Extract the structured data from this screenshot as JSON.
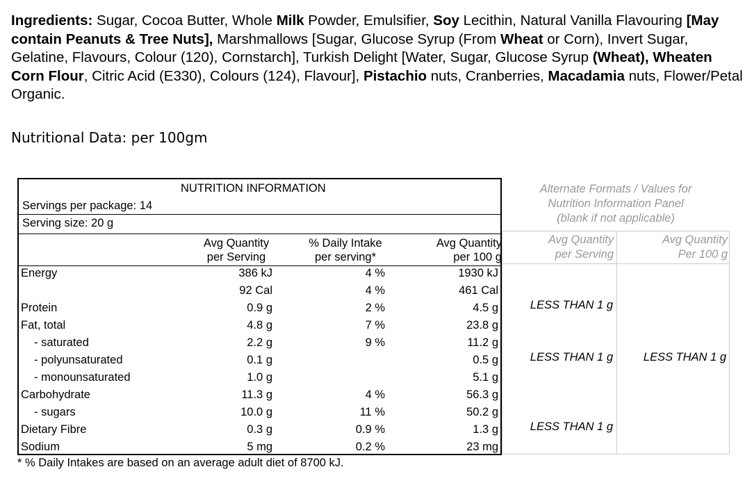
{
  "ingredients": {
    "label": "Ingredients:",
    "segments": [
      {
        "t": " Sugar, Cocoa Butter, Whole ",
        "b": false
      },
      {
        "t": "Milk",
        "b": true
      },
      {
        "t": " Powder, Emulsifier, ",
        "b": false
      },
      {
        "t": "Soy",
        "b": true
      },
      {
        "t": " Lecithin, Natural Vanilla Flavouring ",
        "b": false
      },
      {
        "t": "[May contain Peanuts & Tree Nuts],",
        "b": true
      },
      {
        "t": " Marshmallows [Sugar, Glucose Syrup (From ",
        "b": false
      },
      {
        "t": "Wheat",
        "b": true
      },
      {
        "t": " or Corn), Invert Sugar, Gelatine, Flavours, Colour (120), Cornstarch], Turkish Delight [Water, Sugar, Glucose Syrup ",
        "b": false
      },
      {
        "t": "(Wheat), Wheaten Corn Flour",
        "b": true
      },
      {
        "t": ", Citric Acid (E330), Colours (124), Flavour], ",
        "b": false
      },
      {
        "t": "Pistachio",
        "b": true
      },
      {
        "t": " nuts, Cranberries, ",
        "b": false
      },
      {
        "t": "Macadamia",
        "b": true
      },
      {
        "t": " nuts, Flower/Petal Organic.",
        "b": false
      }
    ]
  },
  "nutritional_heading": "Nutritional Data: per 100gm",
  "panel": {
    "title": "NUTRITION INFORMATION",
    "servings_per_package": "Servings per package: 14",
    "serving_size": "Serving size: 20 g",
    "headers": {
      "per_serving": [
        "Avg Quantity",
        "per Serving"
      ],
      "daily_intake": [
        "% Daily Intake",
        "per serving*"
      ],
      "per_100g": [
        "Avg Quantity",
        "per 100 g"
      ]
    },
    "rows": [
      {
        "label": "Energy",
        "indent": false,
        "serving": "386 kJ",
        "daily": "4 %",
        "per100": "1930 kJ"
      },
      {
        "label": "",
        "indent": false,
        "serving": "92 Cal",
        "daily": "4 %",
        "per100": "461 Cal"
      },
      {
        "label": "Protein",
        "indent": false,
        "serving": "0.9 g",
        "daily": "2 %",
        "per100": "4.5 g"
      },
      {
        "label": "Fat, total",
        "indent": false,
        "serving": "4.8 g",
        "daily": "7 %",
        "per100": "23.8 g"
      },
      {
        "label": "- saturated",
        "indent": true,
        "serving": "2.2 g",
        "daily": "9 %",
        "per100": "11.2 g"
      },
      {
        "label": "- polyunsaturated",
        "indent": true,
        "serving": "0.1 g",
        "daily": "",
        "per100": "0.5 g"
      },
      {
        "label": "- monounsaturated",
        "indent": true,
        "serving": "1.0 g",
        "daily": "",
        "per100": "5.1 g"
      },
      {
        "label": "Carbohydrate",
        "indent": false,
        "serving": "11.3 g",
        "daily": "4 %",
        "per100": "56.3 g"
      },
      {
        "label": "- sugars",
        "indent": true,
        "serving": "10.0 g",
        "daily": "11 %",
        "per100": "50.2 g"
      },
      {
        "label": "Dietary Fibre",
        "indent": false,
        "serving": "0.3 g",
        "daily": "0.9 %",
        "per100": "1.3 g"
      },
      {
        "label": "Sodium",
        "indent": false,
        "serving": "5 mg",
        "daily": "0.2 %",
        "per100": "23 mg"
      }
    ],
    "footnote": "* % Daily Intakes are based on an average adult diet of 8700 kJ."
  },
  "alternate": {
    "title_lines": [
      "Alternate Formats / Values for",
      "Nutrition Information Panel",
      "(blank if not applicable)"
    ],
    "headers": {
      "per_serving": [
        "Avg Quantity",
        "per Serving"
      ],
      "per_100g": [
        "Avg Quantity",
        "Per 100 g"
      ]
    },
    "values": [
      {
        "row": 2,
        "per_serving": "LESS THAN 1 g",
        "per_100g": ""
      },
      {
        "row": 5,
        "per_serving": "LESS THAN 1 g",
        "per_100g": "LESS THAN 1 g"
      },
      {
        "row": 9,
        "per_serving": "LESS THAN 1 g",
        "per_100g": ""
      }
    ]
  }
}
